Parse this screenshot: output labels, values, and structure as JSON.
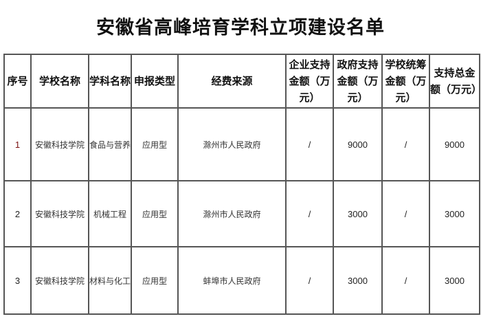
{
  "title": "安徽省高峰培育学科立项建设名单",
  "table": {
    "headers": [
      "序号",
      "学校名称",
      "学科名称",
      "申报类型",
      "经费来源",
      "企业支持金额（万元）",
      "政府支持金额（万元）",
      "学校统筹金额（万元）",
      "支持总金额（万元）"
    ],
    "rows": [
      [
        "1",
        "安徽科技学院",
        "食品与营养",
        "应用型",
        "滁州市人民政府",
        "/",
        "9000",
        "/",
        "9000"
      ],
      [
        "2",
        "安徽科技学院",
        "机械工程",
        "应用型",
        "滁州市人民政府",
        "/",
        "3000",
        "/",
        "3000"
      ],
      [
        "3",
        "安徽科技学院",
        "材料与化工",
        "应用型",
        "蚌埠市人民政府",
        "/",
        "3000",
        "/",
        "3000"
      ]
    ]
  }
}
